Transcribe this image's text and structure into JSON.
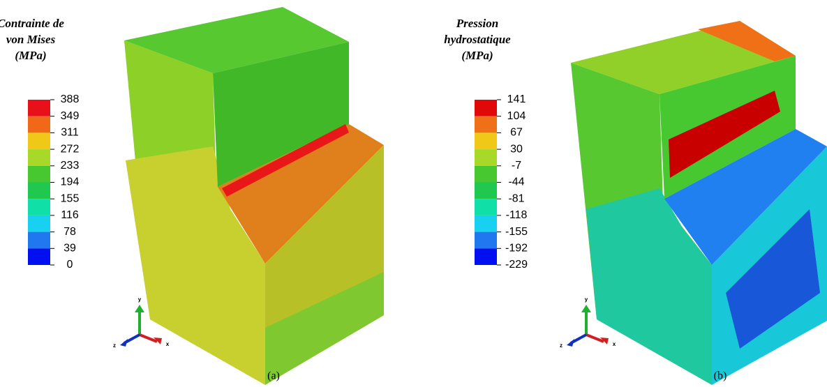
{
  "panels": [
    {
      "legend": {
        "title": [
          "Contrainte de",
          "von Mises",
          "(MPa)"
        ],
        "labels": [
          388,
          349,
          311,
          272,
          233,
          194,
          155,
          116,
          78,
          39,
          0
        ],
        "colors": [
          "#e8101a",
          "#f06818",
          "#f0c818",
          "#a8d828",
          "#48c830",
          "#20c850",
          "#10e0a8",
          "#18d0f0",
          "#2078f0",
          "#0010f0"
        ]
      },
      "axes": {
        "y": "y",
        "z": "z",
        "x": "x"
      },
      "caption": "(a)"
    },
    {
      "legend": {
        "title": [
          "Pression",
          "hydrostatique",
          "(MPa)"
        ],
        "labels": [
          141,
          104,
          67,
          30,
          -7,
          -44,
          -81,
          -118,
          -155,
          -192,
          -229
        ],
        "colors": [
          "#e00808",
          "#f07018",
          "#f0c818",
          "#a8d828",
          "#48c830",
          "#20c850",
          "#10e0a8",
          "#18d0f0",
          "#2078f0",
          "#0010f0"
        ]
      },
      "axes": {
        "y": "y",
        "z": "z",
        "x": "x"
      },
      "caption": "(b)"
    }
  ]
}
